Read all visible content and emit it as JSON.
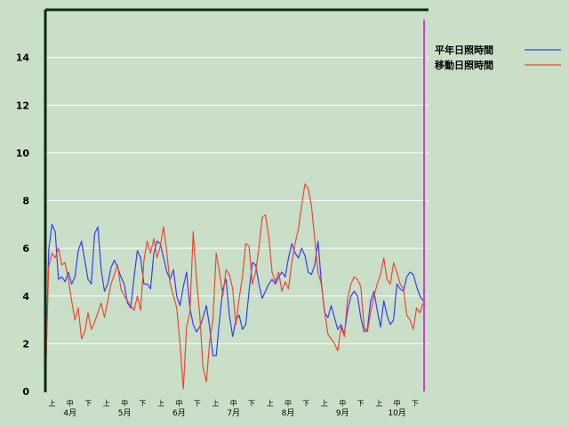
{
  "chart_data": {
    "type": "line",
    "title": "",
    "xlabel": "",
    "ylabel": "",
    "ylim": [
      0,
      16
    ],
    "y_ticks": [
      0,
      2,
      4,
      6,
      8,
      10,
      12,
      14
    ],
    "grid": "horizontal",
    "legend_position": "top-right",
    "x_period_labels": [
      "上",
      "中",
      "下"
    ],
    "months": [
      "4月",
      "5月",
      "6月",
      "7月",
      "8月",
      "9月",
      "10月"
    ],
    "series": [
      {
        "name": "平年日照時間",
        "color": "#3c3cf0",
        "values": [
          0.0,
          5.9,
          7.0,
          6.7,
          4.7,
          4.8,
          4.6,
          5.0,
          4.5,
          4.8,
          5.9,
          6.3,
          5.5,
          4.7,
          4.5,
          6.6,
          6.9,
          5.1,
          4.2,
          4.5,
          5.2,
          5.5,
          5.2,
          4.8,
          4.5,
          3.7,
          3.5,
          4.8,
          5.9,
          5.6,
          4.5,
          4.5,
          4.3,
          5.8,
          6.3,
          6.2,
          5.6,
          5.0,
          4.7,
          5.1,
          4.0,
          3.6,
          4.4,
          5.0,
          3.5,
          2.8,
          2.5,
          2.7,
          3.1,
          3.6,
          2.7,
          1.5,
          1.5,
          3.0,
          4.3,
          4.7,
          3.2,
          2.3,
          3.0,
          3.2,
          2.6,
          2.8,
          4.2,
          5.4,
          5.3,
          4.5,
          3.9,
          4.2,
          4.5,
          4.7,
          4.5,
          4.8,
          5.0,
          4.8,
          5.6,
          6.2,
          5.8,
          5.6,
          6.0,
          5.7,
          5.0,
          4.9,
          5.3,
          6.3,
          4.6,
          3.3,
          3.1,
          3.6,
          3.1,
          2.6,
          2.8,
          2.4,
          3.4,
          4.0,
          4.2,
          4.0,
          3.1,
          2.5,
          2.6,
          3.8,
          4.2,
          3.4,
          2.7,
          3.8,
          3.2,
          2.8,
          3.0,
          4.5,
          4.3,
          4.2,
          4.8,
          5.0,
          4.9,
          4.4,
          4.0,
          3.8
        ]
      },
      {
        "name": "移動日照時間",
        "color": "#e84a35",
        "values": [
          0.0,
          5.2,
          5.8,
          5.6,
          6.0,
          5.3,
          5.4,
          4.7,
          3.8,
          3.0,
          3.5,
          2.2,
          2.5,
          3.3,
          2.6,
          2.9,
          3.3,
          3.7,
          3.1,
          3.8,
          4.5,
          4.9,
          5.3,
          4.3,
          4.0,
          3.8,
          3.6,
          3.4,
          4.0,
          3.4,
          5.5,
          6.3,
          5.8,
          6.4,
          5.6,
          6.1,
          6.9,
          5.8,
          4.5,
          4.0,
          3.5,
          2.0,
          0.1,
          2.7,
          3.3,
          6.7,
          4.7,
          3.2,
          1.0,
          0.4,
          2.1,
          3.0,
          5.8,
          5.0,
          4.0,
          5.1,
          4.9,
          4.3,
          2.8,
          3.9,
          4.8,
          6.2,
          6.1,
          4.5,
          5.0,
          6.0,
          7.3,
          7.4,
          6.5,
          5.0,
          4.6,
          5.0,
          4.2,
          4.6,
          4.3,
          5.4,
          6.2,
          6.8,
          7.8,
          8.7,
          8.5,
          7.8,
          6.4,
          5.0,
          4.5,
          3.4,
          2.4,
          2.2,
          2.0,
          1.7,
          2.7,
          2.3,
          3.9,
          4.5,
          4.8,
          4.7,
          4.4,
          2.7,
          2.5,
          3.3,
          4.0,
          4.5,
          4.9,
          5.6,
          4.7,
          4.5,
          5.4,
          5.0,
          4.5,
          4.3,
          3.2,
          3.0,
          2.6,
          3.5,
          3.3,
          3.7
        ]
      }
    ]
  }
}
